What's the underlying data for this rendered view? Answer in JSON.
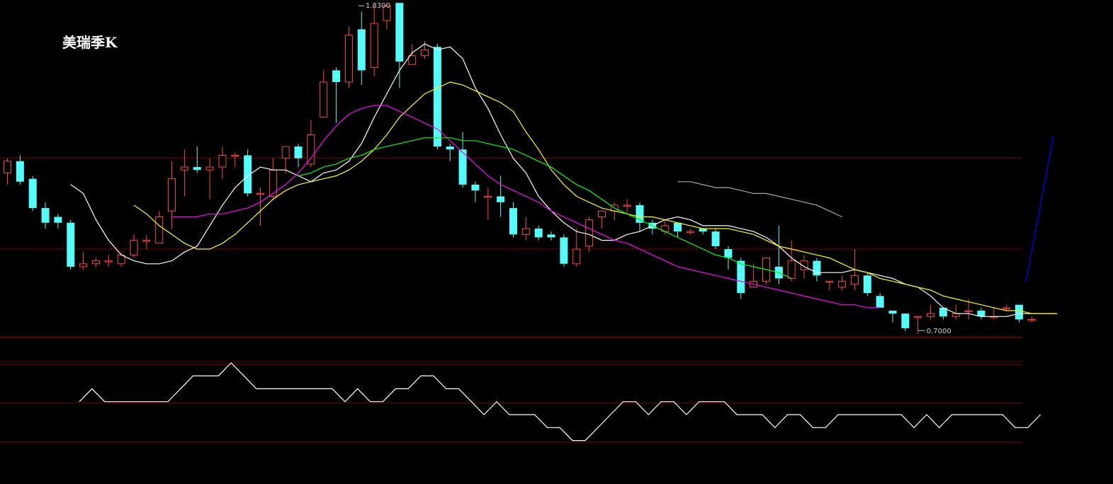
{
  "title": "美瑞季K",
  "colors": {
    "up": "#ff4444",
    "down": "#54fcfc",
    "ma5": "#ffffff",
    "ma10": "#ffff00",
    "ma20": "#ff00ff",
    "ma30": "#00ff00",
    "ma60": "#aaaaaa",
    "grid": "#7a0000",
    "indicator": "#ffffff",
    "trendline": "#0000ff"
  },
  "chart_data": {
    "type": "candlestick",
    "title": "美瑞季K",
    "ylim": [
      0.64,
      1.84
    ],
    "annotations": {
      "high_label": "1.8300",
      "low_label": "0.7000"
    },
    "candles": [
      [
        1.25,
        1.29,
        1.21,
        1.3
      ],
      [
        1.29,
        1.22,
        1.21,
        1.31
      ],
      [
        1.23,
        1.13,
        1.12,
        1.24
      ],
      [
        1.13,
        1.08,
        1.06,
        1.15
      ],
      [
        1.1,
        1.08,
        1.06,
        1.11
      ],
      [
        1.08,
        0.93,
        0.92,
        1.09
      ],
      [
        0.93,
        0.94,
        0.92,
        0.98
      ],
      [
        0.94,
        0.95,
        0.93,
        0.96
      ],
      [
        0.95,
        0.95,
        0.93,
        0.97
      ],
      [
        0.94,
        0.97,
        0.93,
        0.98
      ],
      [
        0.97,
        1.02,
        0.96,
        1.04
      ],
      [
        1.02,
        1.02,
        0.99,
        1.04
      ],
      [
        1.01,
        1.1,
        1.01,
        1.12
      ],
      [
        1.12,
        1.23,
        1.06,
        1.29
      ],
      [
        1.26,
        1.27,
        1.17,
        1.33
      ],
      [
        1.27,
        1.26,
        1.25,
        1.34
      ],
      [
        1.26,
        1.27,
        1.16,
        1.3
      ],
      [
        1.27,
        1.31,
        1.23,
        1.34
      ],
      [
        1.31,
        1.31,
        1.27,
        1.32
      ],
      [
        1.31,
        1.18,
        1.17,
        1.33
      ],
      [
        1.18,
        1.18,
        1.07,
        1.2
      ],
      [
        1.17,
        1.26,
        1.16,
        1.3
      ],
      [
        1.3,
        1.34,
        1.25,
        1.34
      ],
      [
        1.34,
        1.3,
        1.27,
        1.35
      ],
      [
        1.28,
        1.38,
        1.27,
        1.43
      ],
      [
        1.44,
        1.56,
        1.44,
        1.6
      ],
      [
        1.6,
        1.56,
        1.42,
        1.61
      ],
      [
        1.56,
        1.72,
        1.54,
        1.75
      ],
      [
        1.74,
        1.6,
        1.55,
        1.8
      ],
      [
        1.61,
        1.76,
        1.58,
        1.82
      ],
      [
        1.77,
        1.82,
        1.74,
        1.83
      ],
      [
        1.83,
        1.63,
        1.54,
        1.83
      ],
      [
        1.62,
        1.65,
        1.62,
        1.69
      ],
      [
        1.65,
        1.67,
        1.64,
        1.7
      ],
      [
        1.68,
        1.34,
        1.33,
        1.69
      ],
      [
        1.34,
        1.33,
        1.29,
        1.35
      ],
      [
        1.33,
        1.21,
        1.2,
        1.39
      ],
      [
        1.21,
        1.19,
        1.15,
        1.22
      ],
      [
        1.17,
        1.17,
        1.09,
        1.2
      ],
      [
        1.17,
        1.15,
        1.1,
        1.24
      ],
      [
        1.13,
        1.04,
        1.03,
        1.15
      ],
      [
        1.04,
        1.06,
        1.02,
        1.1
      ],
      [
        1.06,
        1.03,
        1.02,
        1.07
      ],
      [
        1.04,
        1.03,
        1.02,
        1.05
      ],
      [
        1.03,
        0.94,
        0.93,
        1.04
      ],
      [
        0.94,
        0.99,
        0.93,
        1.06
      ],
      [
        1.0,
        1.09,
        0.98,
        1.1
      ],
      [
        1.1,
        1.12,
        1.06,
        1.12
      ],
      [
        1.12,
        1.14,
        1.09,
        1.15
      ],
      [
        1.14,
        1.14,
        1.11,
        1.16
      ],
      [
        1.14,
        1.08,
        1.05,
        1.15
      ],
      [
        1.08,
        1.06,
        1.04,
        1.09
      ],
      [
        1.05,
        1.07,
        1.04,
        1.09
      ],
      [
        1.08,
        1.05,
        1.03,
        1.08
      ],
      [
        1.05,
        1.05,
        1.04,
        1.06
      ],
      [
        1.06,
        1.05,
        1.04,
        1.06
      ],
      [
        1.05,
        1.0,
        0.99,
        1.06
      ],
      [
        0.99,
        0.96,
        0.92,
        1.0
      ],
      [
        0.95,
        0.84,
        0.82,
        0.96
      ],
      [
        0.86,
        0.88,
        0.86,
        0.94
      ],
      [
        0.88,
        0.96,
        0.87,
        0.96
      ],
      [
        0.93,
        0.89,
        0.87,
        1.07
      ],
      [
        0.89,
        0.95,
        0.88,
        1.02
      ],
      [
        0.92,
        0.95,
        0.89,
        0.97
      ],
      [
        0.95,
        0.9,
        0.88,
        0.96
      ],
      [
        0.88,
        0.88,
        0.85,
        0.88
      ],
      [
        0.86,
        0.88,
        0.85,
        0.9
      ],
      [
        0.87,
        0.9,
        0.85,
        0.99
      ],
      [
        0.9,
        0.84,
        0.83,
        0.91
      ],
      [
        0.83,
        0.79,
        0.79,
        0.84
      ],
      [
        0.78,
        0.77,
        0.74,
        0.78
      ],
      [
        0.77,
        0.72,
        0.71,
        0.77
      ],
      [
        0.76,
        0.76,
        0.7,
        0.76
      ],
      [
        0.76,
        0.77,
        0.75,
        0.8
      ],
      [
        0.79,
        0.76,
        0.75,
        0.79
      ],
      [
        0.76,
        0.77,
        0.75,
        0.8
      ],
      [
        0.78,
        0.78,
        0.75,
        0.82
      ],
      [
        0.78,
        0.76,
        0.75,
        0.79
      ],
      [
        0.76,
        0.76,
        0.75,
        0.79
      ],
      [
        0.79,
        0.79,
        0.78,
        0.8
      ],
      [
        0.8,
        0.75,
        0.74,
        0.8
      ],
      [
        0.75,
        0.75,
        0.74,
        0.76
      ]
    ],
    "moving_averages": [
      {
        "name": "MA5",
        "color": "#ffffff",
        "start": 5,
        "values": [
          1.21,
          1.18,
          1.09,
          1.02,
          0.97,
          0.95,
          0.94,
          0.94,
          0.95,
          0.98,
          1.0,
          1.07,
          1.14,
          1.2,
          1.24,
          1.27,
          1.26,
          1.26,
          1.24,
          1.22,
          1.25,
          1.26,
          1.29,
          1.35,
          1.44,
          1.52,
          1.6,
          1.66,
          1.69,
          1.67,
          1.68,
          1.64,
          1.54,
          1.47,
          1.38,
          1.3,
          1.25,
          1.17,
          1.12,
          1.08,
          1.05,
          1.04,
          1.02,
          1.02,
          1.04,
          1.05,
          1.07,
          1.09,
          1.1,
          1.09,
          1.07,
          1.07,
          1.07,
          1.06,
          1.05,
          1.03,
          1.0,
          0.96,
          0.93,
          0.91,
          0.91,
          0.91,
          0.92,
          0.91,
          0.9,
          0.89,
          0.87,
          0.86,
          0.83,
          0.79,
          0.77,
          0.77,
          0.76,
          0.76,
          0.76,
          0.77,
          0.77,
          0.77,
          0.77
        ]
      },
      {
        "name": "MA10",
        "color": "#ffff00",
        "start": 10,
        "values": [
          1.14,
          1.11,
          1.07,
          1.04,
          1.01,
          0.99,
          0.99,
          1.01,
          1.04,
          1.08,
          1.12,
          1.16,
          1.19,
          1.21,
          1.22,
          1.23,
          1.24,
          1.26,
          1.29,
          1.33,
          1.38,
          1.44,
          1.48,
          1.52,
          1.54,
          1.56,
          1.55,
          1.53,
          1.51,
          1.49,
          1.46,
          1.39,
          1.33,
          1.26,
          1.21,
          1.17,
          1.15,
          1.13,
          1.12,
          1.11,
          1.1,
          1.1,
          1.09,
          1.08,
          1.07,
          1.06,
          1.06,
          1.06,
          1.05,
          1.04,
          1.02,
          1.0,
          0.99,
          0.98,
          0.97,
          0.96,
          0.94,
          0.92,
          0.91,
          0.89,
          0.88,
          0.87,
          0.86,
          0.85,
          0.83,
          0.82,
          0.81,
          0.8,
          0.79,
          0.78,
          0.78,
          0.77,
          0.77,
          0.77
        ]
      },
      {
        "name": "MA20",
        "color": "#ff00ff",
        "start": 13,
        "values": [
          1.1,
          1.1,
          1.1,
          1.11,
          1.11,
          1.12,
          1.13,
          1.15,
          1.18,
          1.21,
          1.25,
          1.3,
          1.36,
          1.41,
          1.45,
          1.47,
          1.48,
          1.48,
          1.46,
          1.44,
          1.42,
          1.4,
          1.36,
          1.32,
          1.28,
          1.24,
          1.21,
          1.19,
          1.17,
          1.15,
          1.12,
          1.1,
          1.08,
          1.06,
          1.04,
          1.02,
          1.01,
          0.99,
          0.97,
          0.95,
          0.93,
          0.92,
          0.91,
          0.9,
          0.89,
          0.88,
          0.87,
          0.86,
          0.85,
          0.84,
          0.83,
          0.82,
          0.81,
          0.8,
          0.8,
          0.79,
          0.79
        ]
      },
      {
        "name": "MA30",
        "color": "#00ff00",
        "start": 23,
        "values": [
          1.24,
          1.25,
          1.27,
          1.28,
          1.3,
          1.31,
          1.33,
          1.34,
          1.35,
          1.36,
          1.37,
          1.37,
          1.37,
          1.36,
          1.36,
          1.35,
          1.34,
          1.33,
          1.31,
          1.29,
          1.27,
          1.24,
          1.21,
          1.19,
          1.16,
          1.13,
          1.11,
          1.09,
          1.07,
          1.05,
          1.03,
          1.01,
          0.99,
          0.97,
          0.96,
          0.94,
          0.93,
          0.92,
          0.91,
          0.89
        ]
      },
      {
        "name": "MA60",
        "color": "#aaaaaa",
        "start": 53,
        "values": [
          1.22,
          1.22,
          1.21,
          1.2,
          1.2,
          1.19,
          1.18,
          1.18,
          1.17,
          1.16,
          1.15,
          1.14,
          1.12,
          1.1
        ]
      }
    ],
    "reference_lines": [
      1.3,
      0.99,
      0.69
    ],
    "indicator": {
      "values": [
        2,
        3,
        2,
        2,
        2,
        2,
        2,
        2,
        3,
        4,
        4,
        4,
        5,
        4,
        3,
        3,
        3,
        3,
        3,
        3,
        3,
        2,
        3,
        2,
        2,
        3,
        3,
        4,
        4,
        3,
        3,
        2,
        1,
        2,
        1,
        1,
        1,
        0,
        0,
        -1,
        -1,
        0,
        1,
        2,
        2,
        1,
        2,
        2,
        1,
        2,
        2,
        2,
        1,
        1,
        1,
        0,
        1,
        1,
        0,
        0,
        1,
        1,
        1,
        1,
        1,
        1,
        0,
        1,
        0,
        1,
        1,
        1,
        1,
        1,
        0,
        0,
        1
      ],
      "reference_levels": [
        5,
        2,
        -1
      ]
    }
  }
}
